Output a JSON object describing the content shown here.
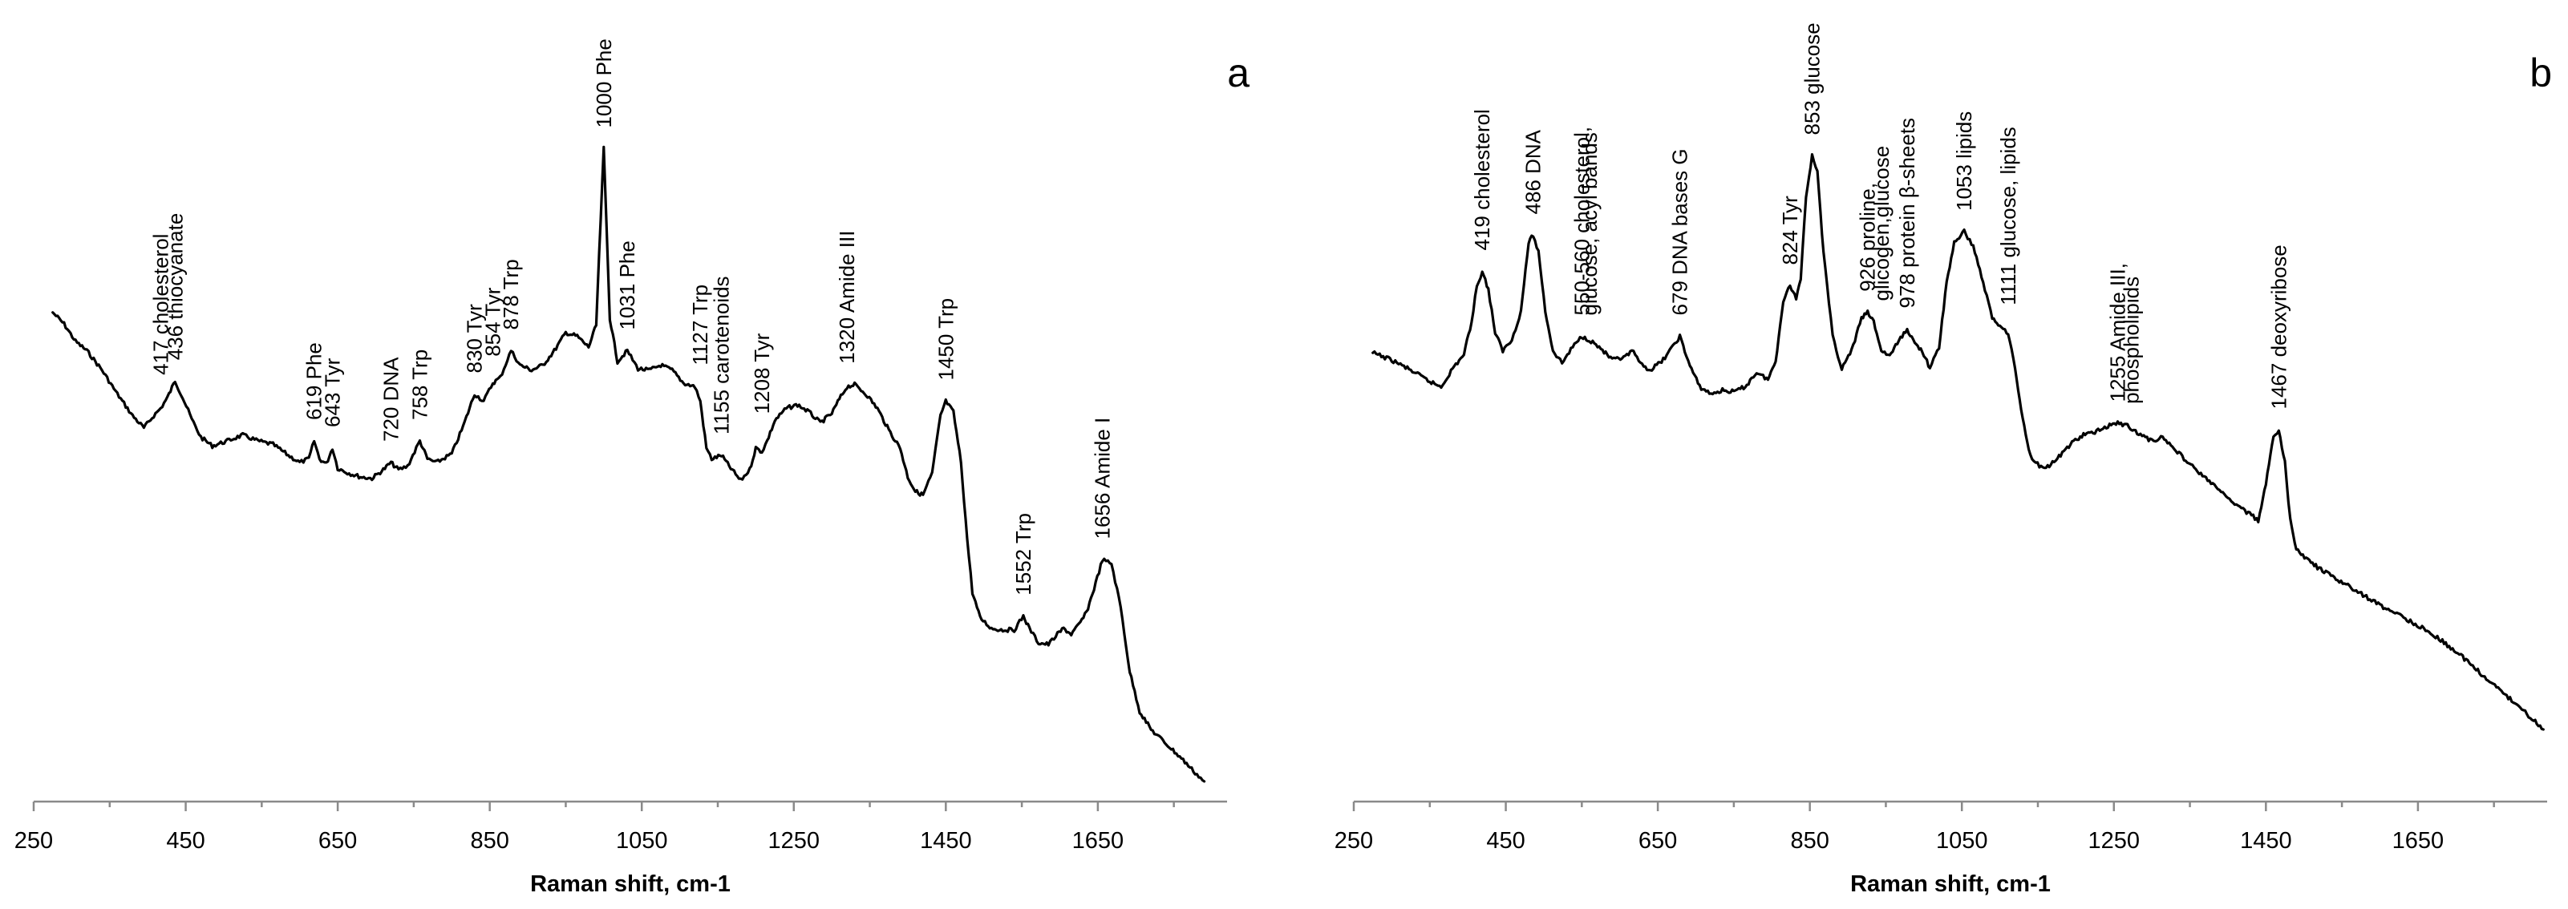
{
  "chart_data": [
    {
      "type": "line",
      "panel_letter": "a",
      "title": "",
      "xlabel": "Raman shift, cm-1",
      "ylabel": "",
      "xlim": [
        250,
        1820
      ],
      "ylim": [
        0,
        1
      ],
      "x_ticks": [
        250,
        450,
        650,
        850,
        1050,
        1250,
        1450,
        1650
      ],
      "minor_ticks": [
        350,
        550,
        750,
        950,
        1150,
        1350,
        1550,
        1750
      ],
      "grid": false,
      "series": [
        {
          "name": "spectrum a",
          "points": [
            [
              275,
              0.678
            ],
            [
              290,
              0.662
            ],
            [
              305,
              0.638
            ],
            [
              320,
              0.625
            ],
            [
              340,
              0.598
            ],
            [
              360,
              0.565
            ],
            [
              380,
              0.535
            ],
            [
              395,
              0.518
            ],
            [
              408,
              0.535
            ],
            [
              417,
              0.545
            ],
            [
              426,
              0.56
            ],
            [
              436,
              0.583
            ],
            [
              446,
              0.56
            ],
            [
              458,
              0.53
            ],
            [
              470,
              0.505
            ],
            [
              485,
              0.493
            ],
            [
              505,
              0.5
            ],
            [
              525,
              0.508
            ],
            [
              545,
              0.5
            ],
            [
              565,
              0.495
            ],
            [
              585,
              0.48
            ],
            [
              600,
              0.47
            ],
            [
              612,
              0.475
            ],
            [
              619,
              0.5
            ],
            [
              626,
              0.475
            ],
            [
              635,
              0.468
            ],
            [
              643,
              0.49
            ],
            [
              650,
              0.462
            ],
            [
              665,
              0.455
            ],
            [
              680,
              0.45
            ],
            [
              695,
              0.448
            ],
            [
              710,
              0.46
            ],
            [
              720,
              0.47
            ],
            [
              730,
              0.46
            ],
            [
              742,
              0.465
            ],
            [
              758,
              0.5
            ],
            [
              768,
              0.475
            ],
            [
              780,
              0.47
            ],
            [
              800,
              0.482
            ],
            [
              815,
              0.52
            ],
            [
              830,
              0.565
            ],
            [
              842,
              0.555
            ],
            [
              854,
              0.58
            ],
            [
              864,
              0.588
            ],
            [
              878,
              0.625
            ],
            [
              890,
              0.605
            ],
            [
              905,
              0.598
            ],
            [
              920,
              0.605
            ],
            [
              935,
              0.625
            ],
            [
              950,
              0.65
            ],
            [
              965,
              0.645
            ],
            [
              980,
              0.63
            ],
            [
              990,
              0.66
            ],
            [
              1000,
              0.905
            ],
            [
              1008,
              0.67
            ],
            [
              1018,
              0.61
            ],
            [
              1031,
              0.625
            ],
            [
              1045,
              0.6
            ],
            [
              1060,
              0.598
            ],
            [
              1075,
              0.605
            ],
            [
              1090,
              0.598
            ],
            [
              1105,
              0.58
            ],
            [
              1120,
              0.575
            ],
            [
              1127,
              0.555
            ],
            [
              1135,
              0.49
            ],
            [
              1142,
              0.475
            ],
            [
              1155,
              0.48
            ],
            [
              1165,
              0.465
            ],
            [
              1180,
              0.445
            ],
            [
              1192,
              0.46
            ],
            [
              1200,
              0.49
            ],
            [
              1208,
              0.485
            ],
            [
              1215,
              0.5
            ],
            [
              1225,
              0.528
            ],
            [
              1240,
              0.545
            ],
            [
              1255,
              0.55
            ],
            [
              1270,
              0.54
            ],
            [
              1285,
              0.525
            ],
            [
              1300,
              0.538
            ],
            [
              1310,
              0.558
            ],
            [
              1320,
              0.575
            ],
            [
              1330,
              0.578
            ],
            [
              1345,
              0.565
            ],
            [
              1360,
              0.545
            ],
            [
              1375,
              0.515
            ],
            [
              1390,
              0.49
            ],
            [
              1400,
              0.45
            ],
            [
              1410,
              0.43
            ],
            [
              1420,
              0.425
            ],
            [
              1432,
              0.455
            ],
            [
              1443,
              0.535
            ],
            [
              1450,
              0.555
            ],
            [
              1460,
              0.54
            ],
            [
              1470,
              0.47
            ],
            [
              1478,
              0.365
            ],
            [
              1485,
              0.29
            ],
            [
              1495,
              0.255
            ],
            [
              1510,
              0.24
            ],
            [
              1525,
              0.238
            ],
            [
              1540,
              0.238
            ],
            [
              1552,
              0.257
            ],
            [
              1560,
              0.24
            ],
            [
              1572,
              0.22
            ],
            [
              1585,
              0.218
            ],
            [
              1597,
              0.232
            ],
            [
              1605,
              0.24
            ],
            [
              1615,
              0.232
            ],
            [
              1625,
              0.245
            ],
            [
              1635,
              0.262
            ],
            [
              1645,
              0.295
            ],
            [
              1656,
              0.335
            ],
            [
              1668,
              0.33
            ],
            [
              1680,
              0.27
            ],
            [
              1692,
              0.18
            ],
            [
              1705,
              0.125
            ],
            [
              1720,
              0.1
            ],
            [
              1740,
              0.08
            ],
            [
              1760,
              0.06
            ],
            [
              1778,
              0.04
            ],
            [
              1790,
              0.028
            ]
          ]
        }
      ],
      "annotations": [
        {
          "text": "417  cholesterol",
          "x": 417
        },
        {
          "text": "436 thiocyanate",
          "x": 436
        },
        {
          "text": "619  Phe",
          "x": 619
        },
        {
          "text": "643  Tyr",
          "x": 643
        },
        {
          "text": "720  DNA",
          "x": 720
        },
        {
          "text": "758  Trp",
          "x": 758
        },
        {
          "text": "830  Tyr",
          "x": 830
        },
        {
          "text": "854  Tyr",
          "x": 854
        },
        {
          "text": "878  Trp",
          "x": 878
        },
        {
          "text": "1000  Phe",
          "x": 1000
        },
        {
          "text": "1031  Phe",
          "x": 1031
        },
        {
          "text": "1127  Trp",
          "x": 1127
        },
        {
          "text": "1155 carotenoids",
          "x": 1155
        },
        {
          "text": "1208  Tyr",
          "x": 1208
        },
        {
          "text": "1320  Amide III",
          "x": 1320
        },
        {
          "text": "1450  Trp",
          "x": 1450
        },
        {
          "text": "1552  Trp",
          "x": 1552
        },
        {
          "text": "1656  Amide I",
          "x": 1656
        }
      ]
    },
    {
      "type": "line",
      "panel_letter": "b",
      "title": "",
      "xlabel": "Raman shift, cm-1",
      "ylabel": "",
      "xlim": [
        250,
        1820
      ],
      "ylim": [
        0,
        1
      ],
      "x_ticks": [
        250,
        450,
        650,
        850,
        1050,
        1250,
        1450,
        1650
      ],
      "minor_ticks": [
        350,
        550,
        750,
        950,
        1150,
        1350,
        1550,
        1750
      ],
      "grid": false,
      "series": [
        {
          "name": "spectrum b",
          "points": [
            [
              275,
              0.622
            ],
            [
              300,
              0.612
            ],
            [
              325,
              0.598
            ],
            [
              350,
              0.582
            ],
            [
              365,
              0.575
            ],
            [
              380,
              0.6
            ],
            [
              395,
              0.62
            ],
            [
              405,
              0.665
            ],
            [
              412,
              0.715
            ],
            [
              419,
              0.735
            ],
            [
              427,
              0.71
            ],
            [
              436,
              0.65
            ],
            [
              446,
              0.625
            ],
            [
              458,
              0.64
            ],
            [
              470,
              0.68
            ],
            [
              480,
              0.775
            ],
            [
              486,
              0.785
            ],
            [
              493,
              0.762
            ],
            [
              502,
              0.68
            ],
            [
              512,
              0.625
            ],
            [
              524,
              0.608
            ],
            [
              538,
              0.63
            ],
            [
              550,
              0.645
            ],
            [
              560,
              0.64
            ],
            [
              575,
              0.628
            ],
            [
              590,
              0.612
            ],
            [
              605,
              0.615
            ],
            [
              618,
              0.625
            ],
            [
              625,
              0.608
            ],
            [
              640,
              0.598
            ],
            [
              655,
              0.61
            ],
            [
              668,
              0.628
            ],
            [
              679,
              0.645
            ],
            [
              690,
              0.61
            ],
            [
              705,
              0.575
            ],
            [
              720,
              0.565
            ],
            [
              735,
              0.57
            ],
            [
              750,
              0.568
            ],
            [
              765,
              0.575
            ],
            [
              780,
              0.595
            ],
            [
              795,
              0.585
            ],
            [
              805,
              0.61
            ],
            [
              815,
              0.695
            ],
            [
              824,
              0.715
            ],
            [
              832,
              0.698
            ],
            [
              838,
              0.725
            ],
            [
              845,
              0.84
            ],
            [
              853,
              0.895
            ],
            [
              860,
              0.875
            ],
            [
              868,
              0.76
            ],
            [
              880,
              0.645
            ],
            [
              892,
              0.6
            ],
            [
              905,
              0.625
            ],
            [
              918,
              0.67
            ],
            [
              926,
              0.678
            ],
            [
              934,
              0.665
            ],
            [
              944,
              0.625
            ],
            [
              955,
              0.618
            ],
            [
              965,
              0.635
            ],
            [
              978,
              0.655
            ],
            [
              988,
              0.635
            ],
            [
              998,
              0.625
            ],
            [
              1008,
              0.6
            ],
            [
              1020,
              0.63
            ],
            [
              1030,
              0.72
            ],
            [
              1040,
              0.775
            ],
            [
              1053,
              0.79
            ],
            [
              1065,
              0.77
            ],
            [
              1078,
              0.72
            ],
            [
              1090,
              0.67
            ],
            [
              1100,
              0.66
            ],
            [
              1111,
              0.65
            ],
            [
              1120,
              0.6
            ],
            [
              1130,
              0.53
            ],
            [
              1140,
              0.48
            ],
            [
              1152,
              0.465
            ],
            [
              1165,
              0.465
            ],
            [
              1180,
              0.48
            ],
            [
              1195,
              0.498
            ],
            [
              1210,
              0.508
            ],
            [
              1225,
              0.512
            ],
            [
              1240,
              0.52
            ],
            [
              1255,
              0.525
            ],
            [
              1270,
              0.52
            ],
            [
              1285,
              0.508
            ],
            [
              1300,
              0.5
            ],
            [
              1312,
              0.505
            ],
            [
              1325,
              0.495
            ],
            [
              1340,
              0.478
            ],
            [
              1360,
              0.458
            ],
            [
              1380,
              0.44
            ],
            [
              1400,
              0.42
            ],
            [
              1420,
              0.405
            ],
            [
              1440,
              0.39
            ],
            [
              1450,
              0.44
            ],
            [
              1460,
              0.505
            ],
            [
              1467,
              0.515
            ],
            [
              1475,
              0.47
            ],
            [
              1482,
              0.39
            ],
            [
              1490,
              0.35
            ],
            [
              1505,
              0.335
            ],
            [
              1520,
              0.323
            ],
            [
              1540,
              0.31
            ],
            [
              1560,
              0.298
            ],
            [
              1580,
              0.285
            ],
            [
              1600,
              0.272
            ],
            [
              1620,
              0.262
            ],
            [
              1640,
              0.25
            ],
            [
              1660,
              0.238
            ],
            [
              1680,
              0.224
            ],
            [
              1700,
              0.208
            ],
            [
              1720,
              0.19
            ],
            [
              1740,
              0.17
            ],
            [
              1760,
              0.152
            ],
            [
              1780,
              0.135
            ],
            [
              1800,
              0.115
            ],
            [
              1815,
              0.1
            ]
          ]
        }
      ],
      "annotations": [
        {
          "text": "419  cholesterol",
          "x": 419
        },
        {
          "text": "486  DNA",
          "x": 486
        },
        {
          "text": "550-560 cholesterol,",
          "x": 550
        },
        {
          "text": "glucose, acyl bands",
          "x": 560
        },
        {
          "text": "679  DNA bases G",
          "x": 679
        },
        {
          "text": "824  Tyr",
          "x": 824
        },
        {
          "text": "853  glucose",
          "x": 853
        },
        {
          "text": "926 proline,",
          "x": 926
        },
        {
          "text": "glicogen,glucose",
          "x": 944
        },
        {
          "text": "978  protein  β-sheets",
          "x": 978
        },
        {
          "text": "1053  lipids",
          "x": 1053
        },
        {
          "text": "1111  glucose,  lipids",
          "x": 1111
        },
        {
          "text": "1255 Amide III,",
          "x": 1255
        },
        {
          "text": "phospholipids",
          "x": 1273
        },
        {
          "text": "1467  deoxyribose",
          "x": 1467
        }
      ]
    }
  ]
}
